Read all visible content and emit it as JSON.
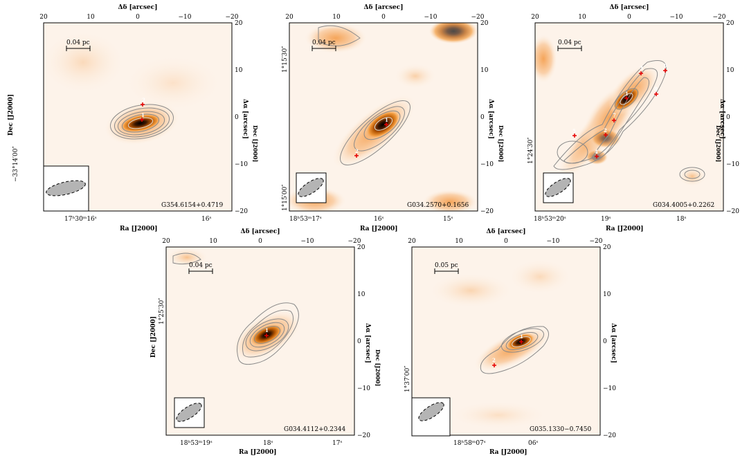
{
  "figure": {
    "panels": [
      {
        "name": "G354.6154+0.4719",
        "scalebar": "0.04 pc",
        "top_title": "Δδ [arcsec]",
        "bottom_title": "Ra [J2000]",
        "left_title": "Dec [J2000]",
        "right_title": "Δα [arcsec]",
        "top_ticks": [
          "20",
          "10",
          "0",
          "−10",
          "−20"
        ],
        "right_ticks": [
          "20",
          "10",
          "0",
          "−10",
          "−20"
        ],
        "bottom_ticks": [
          "17ʰ30ᵐ16ˢ",
          "16ˢ"
        ],
        "left_ticks": [
          "−33°14′00″"
        ],
        "sources": [
          "1",
          "2"
        ]
      },
      {
        "name": "G034.2570+0.1656",
        "scalebar": "0.04 pc",
        "top_title": "Δδ [arcsec]",
        "bottom_title": "Ra [J2000]",
        "left_title": "Dec [J2000]",
        "right_title": "Δα [arcsec]",
        "top_ticks": [
          "20",
          "10",
          "0",
          "−10",
          "−20"
        ],
        "right_ticks": [
          "20",
          "10",
          "0",
          "−10",
          "−20"
        ],
        "bottom_ticks": [
          "18ʰ53ᵐ17ˢ",
          "16ˢ",
          "15ˢ"
        ],
        "left_ticks": [
          "1°15′30″",
          "1°15′00″"
        ],
        "sources": [
          "1",
          "2"
        ]
      },
      {
        "name": "G034.4005+0.2262",
        "scalebar": "0.04 pc",
        "top_title": "Δδ [arcsec]",
        "bottom_title": "Ra [J2000]",
        "left_title": "Dec [J2000]",
        "right_title": "Δα [arcsec]",
        "top_ticks": [
          "20",
          "10",
          "0",
          "−10",
          "−20"
        ],
        "right_ticks": [
          "20",
          "10",
          "0",
          "−10",
          "−20"
        ],
        "bottom_ticks": [
          "18ʰ53ᵐ20ˢ",
          "19ˢ",
          "18ˢ"
        ],
        "left_ticks": [
          "1°24′30″"
        ],
        "sources": [
          "1",
          "2",
          "3",
          "4",
          "5",
          "6",
          "7",
          "8"
        ]
      },
      {
        "name": "G034.4112+0.2344",
        "scalebar": "0.04 pc",
        "top_title": "Δδ [arcsec]",
        "bottom_title": "Ra [J2000]",
        "left_title": "Dec [J2000]",
        "right_title": "Δα [arcsec]",
        "top_ticks": [
          "20",
          "10",
          "0",
          "−10",
          "−20"
        ],
        "right_ticks": [
          "20",
          "10",
          "0",
          "−10",
          "−20"
        ],
        "bottom_ticks": [
          "18ʰ53ᵐ19ˢ",
          "18ˢ",
          "17ˢ"
        ],
        "left_ticks": [
          "1°25′30″"
        ],
        "sources": [
          "1"
        ]
      },
      {
        "name": "G035.1330−0.7450",
        "scalebar": "0.05 pc",
        "top_title": "Δδ [arcsec]",
        "bottom_title": "Ra [J2000]",
        "left_title": "Dec [J2000]",
        "right_title": "Δα [arcsec]",
        "top_ticks": [
          "20",
          "10",
          "0",
          "−10",
          "−20"
        ],
        "right_ticks": [
          "20",
          "10",
          "0",
          "−10",
          "−20"
        ],
        "bottom_ticks": [
          "18ʰ58ᵐ07ˢ",
          "06ˢ"
        ],
        "left_ticks": [
          "1°37′00″"
        ],
        "sources": [
          "1",
          "2"
        ]
      }
    ]
  },
  "colors": {
    "background_map": "#fdf3ea",
    "emission_mid": "#f29a3c",
    "emission_peak": "#000000",
    "contour": "#8a8a8a",
    "marker": "#e60000",
    "beam_fill": "#b4b4b4"
  }
}
